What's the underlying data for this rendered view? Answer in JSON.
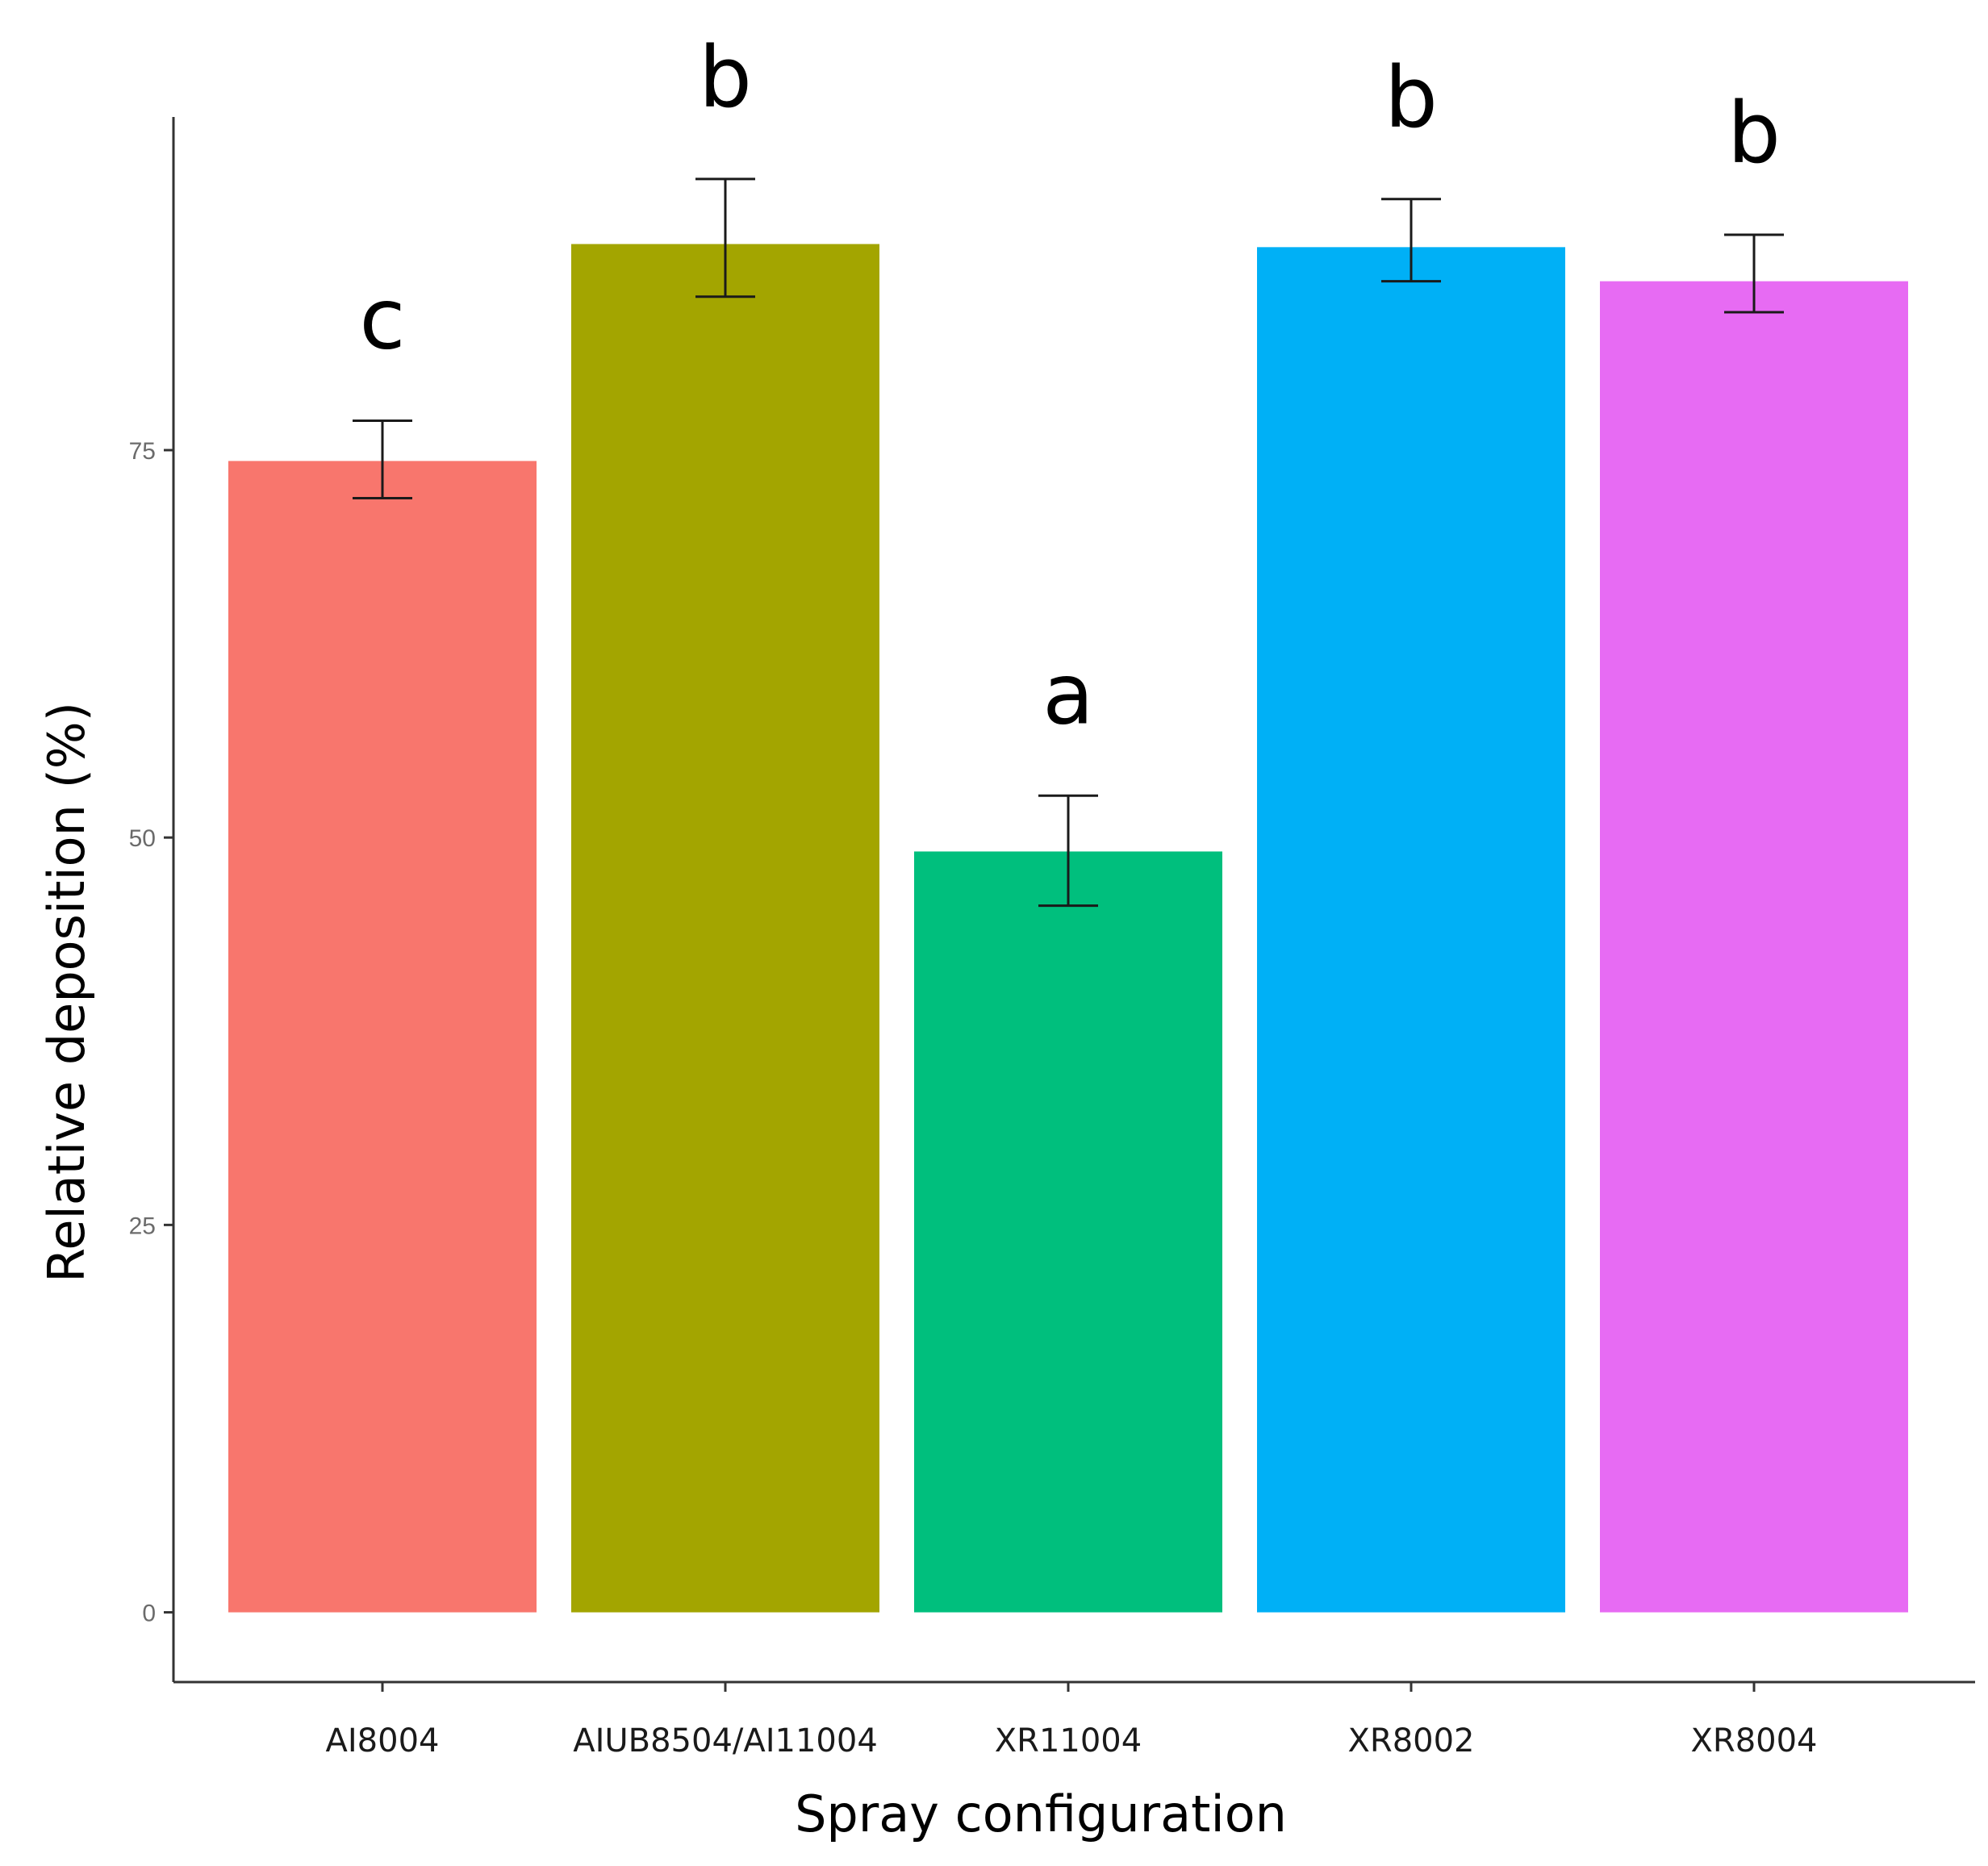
{
  "chart_data": {
    "type": "bar",
    "title": "",
    "xlabel": "Spray configuration",
    "ylabel": "Relative deposition (%)",
    "ylim": [
      -4.5,
      96.5
    ],
    "yticks": [
      0,
      25,
      50,
      75
    ],
    "ytick_labels": [
      "0",
      "25",
      "50",
      "75"
    ],
    "grid": false,
    "categories": [
      "AI8004",
      "AIUB8504/AI11004",
      "XR11004",
      "XR8002",
      "XR8004"
    ],
    "values": [
      74.3,
      88.3,
      49.1,
      88.1,
      85.9
    ],
    "error_low": [
      71.9,
      84.9,
      45.6,
      85.9,
      83.9
    ],
    "error_high": [
      76.9,
      92.5,
      52.7,
      91.2,
      88.9
    ],
    "significance_letters": [
      "c",
      "b",
      "a",
      "b",
      "b"
    ],
    "colors": [
      "#F8766D",
      "#A3A500",
      "#00BF7D",
      "#00B0F6",
      "#E76BF3"
    ]
  }
}
